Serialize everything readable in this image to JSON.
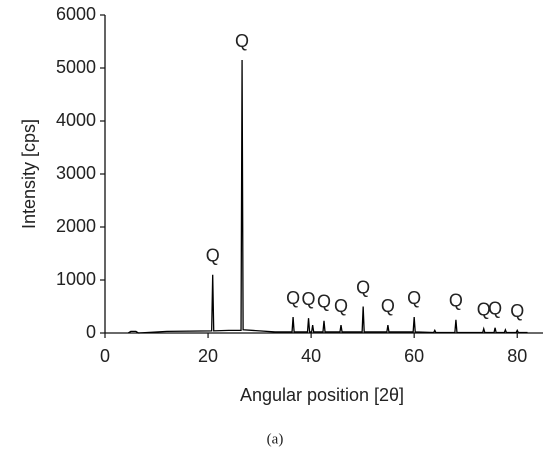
{
  "chart_data": {
    "type": "line",
    "x_label": "Angular position [2θ]",
    "y_label": "Intensity [cps]",
    "caption": "(a)",
    "x": [
      4.5,
      5,
      6,
      6.5,
      12,
      20.7,
      20.9,
      21.1,
      24,
      26.4,
      26.6,
      26.8,
      30,
      33,
      36.3,
      36.5,
      36.7,
      39.3,
      39.5,
      39.7,
      40.1,
      40.3,
      40.5,
      42.3,
      42.5,
      42.7,
      45.6,
      45.8,
      46,
      49.9,
      50.1,
      50.3,
      54.7,
      54.9,
      55.1,
      59.8,
      60,
      60.2,
      63.8,
      64,
      64.2,
      67.9,
      68.1,
      68.3,
      73.3,
      73.5,
      73.7,
      75.5,
      75.7,
      75.9,
      77.5,
      77.7,
      77.9,
      79.8,
      80,
      80.2,
      82
    ],
    "series": [
      {
        "color": "#000000",
        "values": [
          0,
          30,
          30,
          0,
          30,
          40,
          1100,
          40,
          50,
          50,
          5150,
          60,
          40,
          20,
          20,
          300,
          20,
          20,
          280,
          20,
          20,
          150,
          20,
          20,
          230,
          20,
          20,
          150,
          20,
          20,
          500,
          20,
          20,
          150,
          20,
          20,
          300,
          20,
          10,
          50,
          10,
          10,
          250,
          10,
          10,
          80,
          10,
          10,
          100,
          10,
          10,
          60,
          10,
          10,
          50,
          10,
          10
        ]
      }
    ],
    "annotations": [
      {
        "text": "Q",
        "x": 20.9
      },
      {
        "text": "Q",
        "x": 26.6
      },
      {
        "text": "Q",
        "x": 36.5
      },
      {
        "text": "Q",
        "x": 39.5
      },
      {
        "text": "Q",
        "x": 42.5
      },
      {
        "text": "Q",
        "x": 45.8
      },
      {
        "text": "Q",
        "x": 50.1
      },
      {
        "text": "Q",
        "x": 54.9
      },
      {
        "text": "Q",
        "x": 60
      },
      {
        "text": "Q",
        "x": 68.1
      },
      {
        "text": "Q",
        "x": 73.5
      },
      {
        "text": "Q",
        "x": 75.7
      },
      {
        "text": "Q",
        "x": 80
      }
    ],
    "xlim": [
      0,
      85
    ],
    "xticks": [
      0,
      20,
      40,
      60,
      80
    ],
    "ylim": [
      0,
      6000
    ],
    "yticks": [
      0,
      1000,
      2000,
      3000,
      4000,
      5000,
      6000
    ]
  }
}
